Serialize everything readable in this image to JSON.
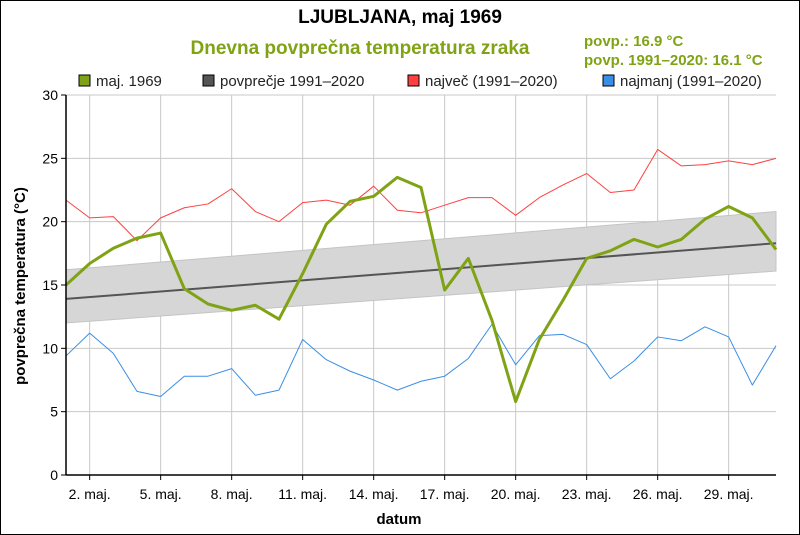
{
  "chart_data": {
    "type": "line",
    "title": "LJUBLJANA, maj 1969",
    "subtitle": "Dnevna povprečna temperatura zraka",
    "stats": [
      "povp.: 16.9 °C",
      "povp. 1991–2020: 16.1 °C"
    ],
    "xlabel": "datum",
    "ylabel": "povprečna temperatura (°C)",
    "ylim": [
      0,
      30
    ],
    "yticks": [
      0,
      5,
      10,
      15,
      20,
      25,
      30
    ],
    "xlim": [
      1,
      31
    ],
    "xticks": [
      {
        "day": 2,
        "label": "2. maj."
      },
      {
        "day": 5,
        "label": "5. maj."
      },
      {
        "day": 8,
        "label": "8. maj."
      },
      {
        "day": 11,
        "label": "11. maj."
      },
      {
        "day": 14,
        "label": "14. maj."
      },
      {
        "day": 17,
        "label": "17. maj."
      },
      {
        "day": 20,
        "label": "20. maj."
      },
      {
        "day": 23,
        "label": "23. maj."
      },
      {
        "day": 26,
        "label": "26. maj."
      },
      {
        "day": 29,
        "label": "29. maj."
      }
    ],
    "grid": true,
    "legend_position": "top",
    "x": [
      1,
      2,
      3,
      4,
      5,
      6,
      7,
      8,
      9,
      10,
      11,
      12,
      13,
      14,
      15,
      16,
      17,
      18,
      19,
      20,
      21,
      22,
      23,
      24,
      25,
      26,
      27,
      28,
      29,
      30,
      31
    ],
    "series": [
      {
        "name": "maj. 1969",
        "color": "#7fa314",
        "values": [
          15.0,
          16.7,
          17.9,
          18.7,
          19.1,
          14.7,
          13.5,
          13.0,
          13.4,
          12.3,
          15.9,
          19.8,
          21.6,
          22.0,
          23.5,
          22.7,
          14.6,
          17.1,
          12.2,
          5.8,
          10.7,
          13.8,
          17.1,
          17.7,
          18.6,
          18.0,
          18.6,
          20.2,
          21.2,
          20.3,
          17.8
        ]
      },
      {
        "name": "povprečje 1991–2020",
        "color": "#555555",
        "start": 13.9,
        "end": 18.3,
        "band_lower": [
          12.0,
          16.1
        ],
        "band_upper": [
          16.2,
          20.8
        ],
        "band_color": "#d6d6d6"
      },
      {
        "name": "največ (1991–2020)",
        "color": "#ff4040",
        "values": [
          21.7,
          20.3,
          20.4,
          18.5,
          20.3,
          21.1,
          21.4,
          22.6,
          20.8,
          20.0,
          21.5,
          21.7,
          21.3,
          22.8,
          20.9,
          20.7,
          21.3,
          21.9,
          21.9,
          20.5,
          21.9,
          22.9,
          23.8,
          22.3,
          22.5,
          25.7,
          24.4,
          24.5,
          24.8,
          24.5,
          25.0
        ]
      },
      {
        "name": "najmanj (1991–2020)",
        "color": "#3a8ee6",
        "values": [
          9.4,
          11.2,
          9.6,
          6.6,
          6.2,
          7.8,
          7.8,
          8.4,
          6.3,
          6.7,
          10.7,
          9.1,
          8.2,
          7.5,
          6.7,
          7.4,
          7.8,
          9.2,
          11.9,
          8.7,
          11.0,
          11.1,
          10.3,
          7.6,
          9.0,
          10.9,
          10.6,
          11.7,
          10.9,
          7.1,
          10.2
        ]
      }
    ]
  }
}
